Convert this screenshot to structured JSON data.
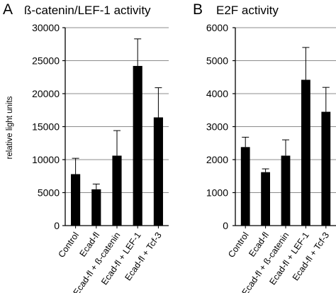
{
  "chart_data": [
    {
      "type": "bar",
      "panel": "A",
      "title": "ß-catenin/LEF-1 activity",
      "ylabel": "relative light units",
      "xlabel": "",
      "ylim": [
        0,
        30000
      ],
      "yticks": [
        "0",
        "5000",
        "10000",
        "15000",
        "20000",
        "25000",
        "30000"
      ],
      "categories": [
        "Control",
        "Ecad-fl",
        "Ecad-fl + ß-catenin",
        "Ecad-fl + LEF-1",
        "Ecad-fl + Tcf-3"
      ],
      "values": [
        7800,
        5500,
        10600,
        24200,
        16400
      ],
      "error_plus": [
        2400,
        800,
        3800,
        4100,
        4500
      ],
      "grid": "horizontal",
      "bar_color": "#000000"
    },
    {
      "type": "bar",
      "panel": "B",
      "title": "E2F activity",
      "ylabel": "",
      "xlabel": "",
      "ylim": [
        0,
        6000
      ],
      "yticks": [
        "0",
        "1000",
        "2000",
        "3000",
        "4000",
        "5000",
        "6000"
      ],
      "categories": [
        "Control",
        "Ecad-fl",
        "Ecad-fl + ß-catenin",
        "Ecad-fl + LEF-1",
        "Ecad-fl + Tcf-3"
      ],
      "values": [
        2380,
        1620,
        2120,
        4420,
        3450
      ],
      "error_plus": [
        300,
        100,
        480,
        980,
        740
      ],
      "grid": "horizontal",
      "bar_color": "#000000"
    }
  ]
}
